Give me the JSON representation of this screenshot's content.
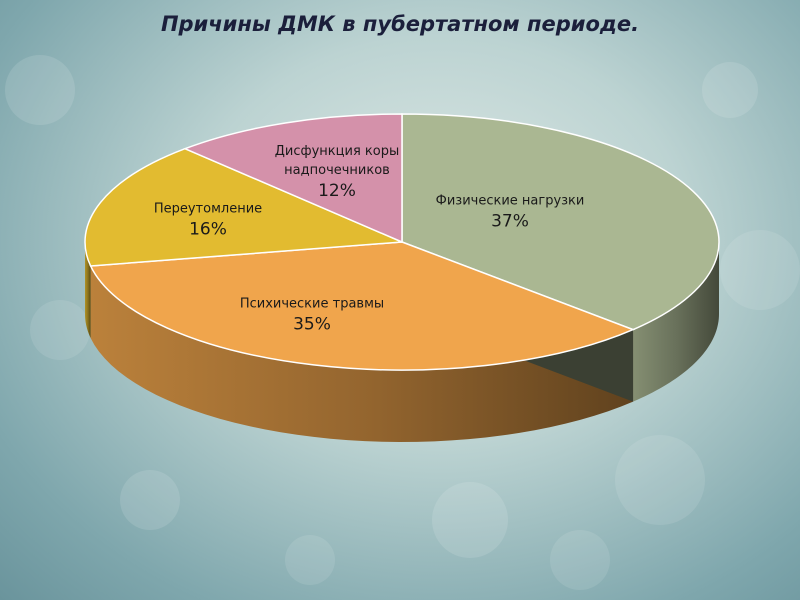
{
  "chart_data": {
    "type": "pie3d",
    "title": "Причины ДМК в пубертатном периоде.",
    "categories": [
      "Физические нагрузки",
      "Психические травмы",
      "Переутомление",
      "Дисфункция коры надпочечников"
    ],
    "values": [
      37,
      35,
      16,
      12
    ],
    "value_labels": [
      "37%",
      "35%",
      "16%",
      "12%"
    ],
    "colors": [
      "#aab792",
      "#f0a54c",
      "#e2bb30",
      "#d491aa"
    ]
  }
}
